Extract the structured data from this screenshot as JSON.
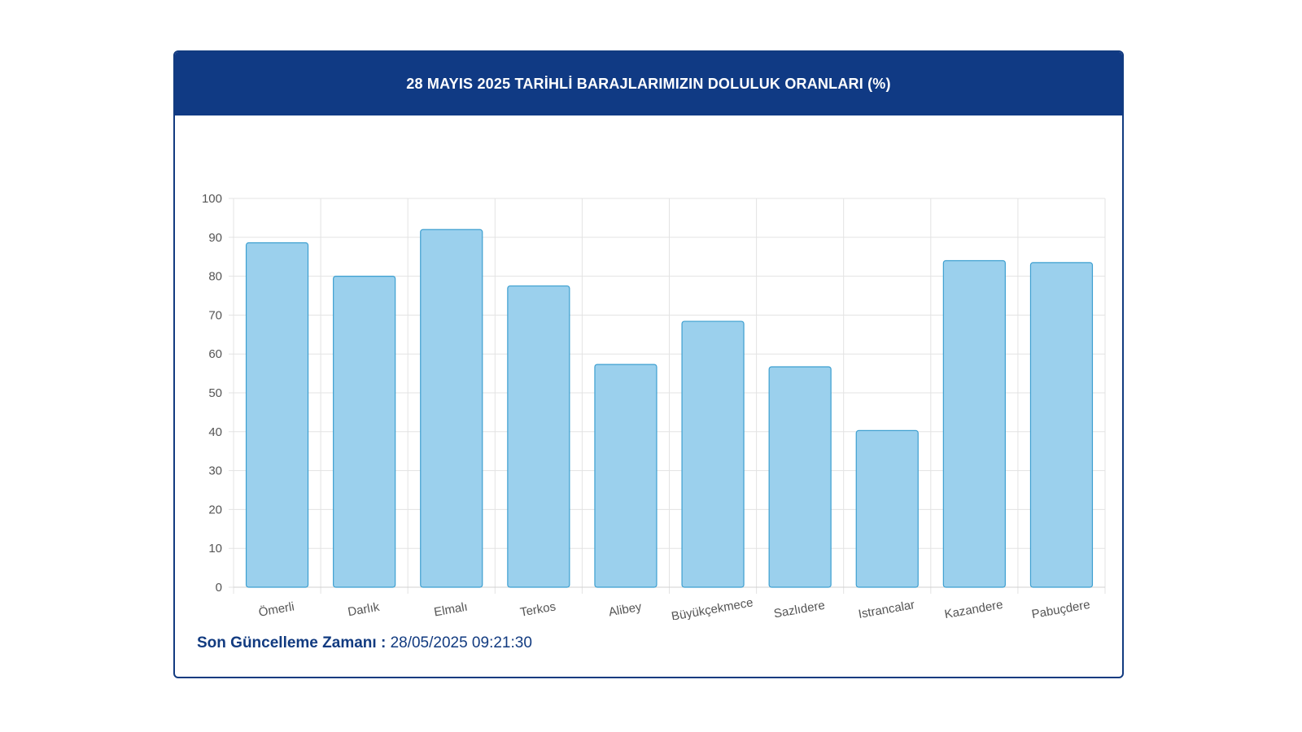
{
  "header": {
    "title": "28 MAYIS 2025 TARİHLİ BARAJLARIMIZIN DOLULUK ORANLARI (%)"
  },
  "footer": {
    "label": "Son Güncelleme Zamanı :",
    "value": "28/05/2025 09:21:30"
  },
  "colors": {
    "header_bg": "#103a84",
    "bar_fill": "#9bd0ed",
    "bar_stroke": "#3d9fd0",
    "grid": "#e3e3e3",
    "text_dark": "#123b80"
  },
  "chart_data": {
    "type": "bar",
    "title": "28 MAYIS 2025 TARİHLİ BARAJLARIMIZIN DOLULUK ORANLARI (%)",
    "categories": [
      "Ömerli",
      "Darlık",
      "Elmalı",
      "Terkos",
      "Alibey",
      "Büyükçekmece",
      "Sazlıdere",
      "Istrancalar",
      "Kazandere",
      "Pabuçdere"
    ],
    "values": [
      88.6,
      80.0,
      92.0,
      77.5,
      57.3,
      68.4,
      56.7,
      40.3,
      84.0,
      83.5
    ],
    "y_ticks": [
      "0",
      "10",
      "20",
      "30",
      "40",
      "50",
      "60",
      "70",
      "80",
      "90",
      "100"
    ],
    "ylim": [
      0,
      100
    ],
    "xlabel": "",
    "ylabel": "",
    "grid": true,
    "legend": "none"
  }
}
